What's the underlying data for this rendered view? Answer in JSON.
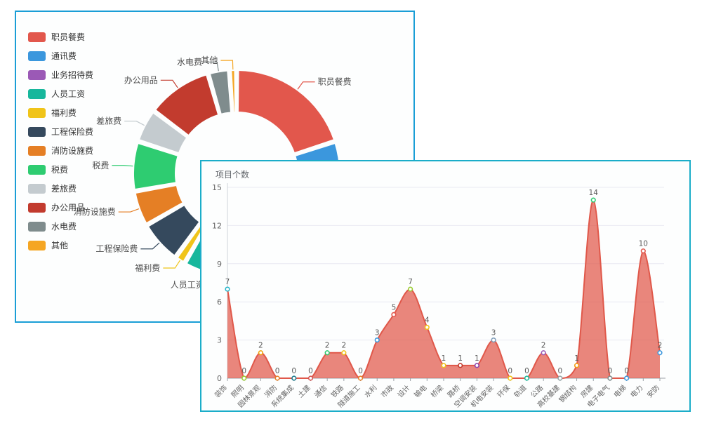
{
  "donut_panel": {
    "border_color": "#1a9ed6",
    "legend": {
      "items": [
        {
          "label": "职员餐费",
          "color": "#e2574c"
        },
        {
          "label": "通讯费",
          "color": "#3b97dd"
        },
        {
          "label": "业务招待费",
          "color": "#9b59b6"
        },
        {
          "label": "人员工资",
          "color": "#17b79c"
        },
        {
          "label": "福利费",
          "color": "#f0c419"
        },
        {
          "label": "工程保险费",
          "color": "#35495d"
        },
        {
          "label": "消防设施费",
          "color": "#e57f25"
        },
        {
          "label": "税费",
          "color": "#2ecc71"
        },
        {
          "label": "差旅费",
          "color": "#c4cbcf"
        },
        {
          "label": "办公用品",
          "color": "#c23b2e"
        },
        {
          "label": "水电费",
          "color": "#7f8c8d"
        },
        {
          "label": "其他",
          "color": "#f5a623"
        }
      ]
    }
  },
  "area_panel": {
    "border_color": "#1badc9",
    "title": "项目个数"
  },
  "chart_data": [
    {
      "type": "pie",
      "subtype": "donut",
      "legend_position": "left",
      "center": [
        314,
        230
      ],
      "outer_radius": 148,
      "inner_radius": 86,
      "label_color": "#4d4d4d",
      "segments": [
        {
          "name": "职员餐费",
          "color": "#e2574c",
          "start": 0,
          "end": 72
        },
        {
          "name": "通讯费",
          "color": "#3b97dd",
          "start": 72,
          "end": 103
        },
        {
          "name": "业务招待费",
          "color": "#9b59b6",
          "start": 103,
          "end": 168
        },
        {
          "name": "人员工资",
          "color": "#17b79c",
          "start": 168,
          "end": 210
        },
        {
          "name": "福利费",
          "color": "#f0c419",
          "start": 210,
          "end": 216
        },
        {
          "name": "工程保险费",
          "color": "#35495d",
          "start": 216,
          "end": 240
        },
        {
          "name": "消防设施费",
          "color": "#e57f25",
          "start": 240,
          "end": 260
        },
        {
          "name": "税费",
          "color": "#2ecc71",
          "start": 260,
          "end": 288
        },
        {
          "name": "差旅费",
          "color": "#c4cbcf",
          "start": 288,
          "end": 307
        },
        {
          "name": "办公用品",
          "color": "#c23b2e",
          "start": 307,
          "end": 344
        },
        {
          "name": "水电费",
          "color": "#7f8c8d",
          "start": 344,
          "end": 356
        },
        {
          "name": "其他",
          "color": "#f5a623",
          "start": 356,
          "end": 360
        }
      ]
    },
    {
      "type": "area",
      "title": "项目个数",
      "smooth": true,
      "grid": true,
      "categories": [
        "装饰",
        "照明",
        "园林景观",
        "消防",
        "系统集成",
        "土建",
        "通信",
        "铁路",
        "隧道施工",
        "水利",
        "市政",
        "设计",
        "输电",
        "桥梁",
        "路桥",
        "空调安装",
        "机电安装",
        "环保",
        "轨道",
        "公路",
        "高校基建",
        "钢结构",
        "房建",
        "电子电气",
        "电梯",
        "电力",
        "安防"
      ],
      "values": [
        7,
        0,
        2,
        0,
        0,
        0,
        2,
        2,
        0,
        3,
        5,
        7,
        4,
        1,
        1,
        1,
        3,
        0,
        0,
        2,
        0,
        1,
        14,
        0,
        0,
        10,
        2
      ],
      "y_ticks": [
        0,
        3,
        6,
        9,
        12,
        15
      ],
      "ylim": [
        0,
        15
      ],
      "line_color": "#e0584a",
      "fill_color": "rgba(224,88,74,0.72)",
      "axis_color": "#9aa0a6",
      "grid_color": "#e9e9f2",
      "tick_label_color": "#666666",
      "value_label_color": "#5a5a5a",
      "point_colors": [
        "#29b6cb",
        "#9acd32",
        "#f0a30a",
        "#e57f25",
        "#1b7a8c",
        "#d35450",
        "#2ecc71",
        "#f0c419",
        "#e57f25",
        "#3b97dd",
        "#e2574c",
        "#9acd32",
        "#f0c419",
        "#f0c419",
        "#c0392b",
        "#8e44ad",
        "#7f9db9",
        "#f0c419",
        "#1abc9c",
        "#9b59b6",
        "#95a5a6",
        "#f39c12",
        "#2ecc71",
        "#7f8c8d",
        "#3b97dd",
        "#e2574c",
        "#3b97dd"
      ]
    }
  ]
}
